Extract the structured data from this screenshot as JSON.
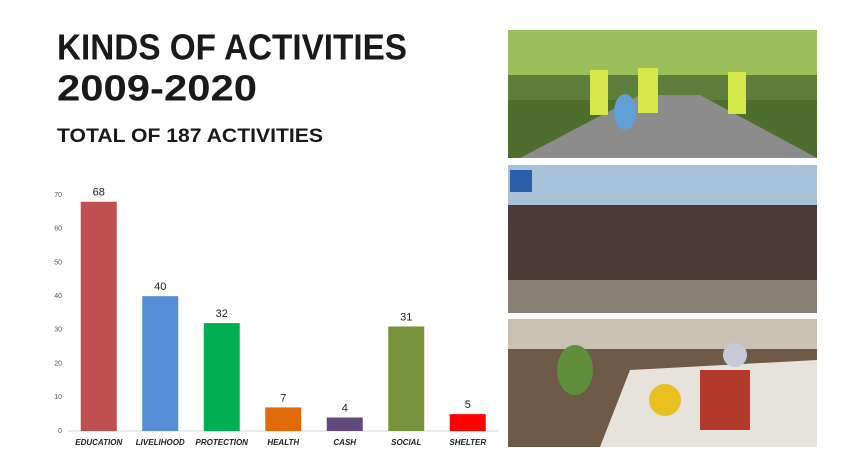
{
  "chart_data": {
    "type": "bar",
    "title": [
      "KINDS OF ACTIVITIES",
      "2009-2020"
    ],
    "subtitle": "TOTAL OF 187 ACTIVITIES",
    "categories": [
      "EDUCATION",
      "LIVELIHOOD",
      "PROTECTION",
      "HEALTH",
      "CASH",
      "SOCIAL",
      "SHELTER"
    ],
    "values": [
      68,
      40,
      32,
      7,
      4,
      31,
      5
    ],
    "colors": [
      "#c0504d",
      "#558ed5",
      "#00b050",
      "#e36c0a",
      "#604a7b",
      "#77933c",
      "#ff0000"
    ],
    "ylim": [
      0,
      70
    ],
    "yticks": [
      0,
      10,
      20,
      30,
      40,
      50,
      60,
      70
    ],
    "grid": false
  }
}
